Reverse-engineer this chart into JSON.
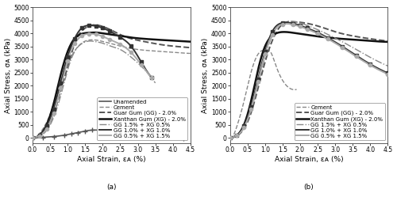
{
  "title_a": "(a)",
  "title_b": "(b)",
  "xlabel": "Axial Strain, εᴀ (%)",
  "ylabel": "Axial Stress, σᴀ (kPa)",
  "xlim": [
    0,
    4.5
  ],
  "ylim": [
    -200,
    5000
  ],
  "xticks": [
    0,
    0.5,
    1.0,
    1.5,
    2.0,
    2.5,
    3.0,
    3.5,
    4.0,
    4.5
  ],
  "yticks": [
    0,
    500,
    1000,
    1500,
    2000,
    2500,
    3000,
    3500,
    4000,
    4500,
    5000
  ],
  "curves_a": {
    "Unamended": {
      "x": [
        0,
        0.3,
        0.6,
        0.9,
        1.1,
        1.3,
        1.5,
        1.7,
        1.9,
        2.1,
        2.3,
        2.5,
        2.8,
        3.2,
        3.8,
        4.3
      ],
      "y": [
        0,
        20,
        50,
        100,
        150,
        200,
        260,
        295,
        295,
        280,
        250,
        220,
        170,
        100,
        30,
        -40
      ],
      "color": "#555555",
      "linestyle": "-",
      "linewidth": 1.2,
      "marker": "+",
      "markersize": 5,
      "markevery": 1
    },
    "Cement": {
      "x": [
        0,
        0.15,
        0.3,
        0.5,
        0.7,
        0.9,
        1.1,
        1.3,
        1.5,
        1.7,
        1.9,
        2.1,
        2.4,
        2.7,
        3.0,
        3.5,
        4.0,
        4.5
      ],
      "y": [
        0,
        100,
        350,
        900,
        1700,
        2500,
        3100,
        3500,
        3700,
        3750,
        3720,
        3650,
        3550,
        3450,
        3380,
        3320,
        3270,
        3230
      ],
      "color": "#888888",
      "linestyle": "--",
      "linewidth": 1.0,
      "marker": null,
      "markersize": 0,
      "markevery": 1
    },
    "Guar Gum (GG) - 2.0%": {
      "x": [
        0,
        0.2,
        0.4,
        0.6,
        0.8,
        1.0,
        1.2,
        1.5,
        1.8,
        2.0,
        2.2,
        2.5,
        2.8,
        3.2,
        3.6,
        4.0,
        4.5
      ],
      "y": [
        0,
        80,
        350,
        900,
        1800,
        2700,
        3600,
        4200,
        4320,
        4260,
        4150,
        3950,
        3800,
        3680,
        3580,
        3510,
        3450
      ],
      "color": "#555555",
      "linestyle": "--",
      "linewidth": 1.4,
      "marker": null,
      "markersize": 0,
      "markevery": 1
    },
    "Xanthan Gum (XG) - 2.0%": {
      "x": [
        0,
        0.2,
        0.4,
        0.6,
        0.8,
        1.0,
        1.2,
        1.4,
        1.6,
        1.8,
        2.0,
        2.2,
        2.5,
        2.8,
        3.0,
        3.5,
        4.0,
        4.5
      ],
      "y": [
        0,
        100,
        500,
        1300,
        2400,
        3300,
        3800,
        3980,
        4020,
        4030,
        4000,
        3960,
        3900,
        3840,
        3810,
        3760,
        3720,
        3680
      ],
      "color": "#111111",
      "linestyle": "-",
      "linewidth": 1.8,
      "marker": null,
      "markersize": 0,
      "markevery": 1
    },
    "GG 1.5% + XG 0.5%": {
      "x": [
        0,
        0.2,
        0.4,
        0.6,
        0.8,
        1.0,
        1.2,
        1.4,
        1.6,
        1.8,
        2.0,
        2.2,
        2.5,
        2.8,
        3.2,
        3.5
      ],
      "y": [
        0,
        60,
        280,
        780,
        1600,
        2600,
        3300,
        3600,
        3700,
        3680,
        3620,
        3520,
        3380,
        3100,
        2600,
        2100
      ],
      "color": "#888888",
      "linestyle": "-.",
      "linewidth": 1.0,
      "marker": null,
      "markersize": 0,
      "markevery": 1
    },
    "GG 1.0% + XG 1.0%": {
      "x": [
        0,
        0.2,
        0.4,
        0.6,
        0.8,
        1.0,
        1.2,
        1.4,
        1.6,
        1.8,
        2.0,
        2.2,
        2.5,
        2.8,
        3.1,
        3.4
      ],
      "y": [
        0,
        100,
        450,
        1100,
        2100,
        3100,
        3800,
        4200,
        4300,
        4280,
        4200,
        4080,
        3850,
        3520,
        2900,
        2300
      ],
      "color": "#333333",
      "linestyle": "-",
      "linewidth": 1.4,
      "marker": "s",
      "markersize": 3.5,
      "markevery": 1
    },
    "GG 0.5% + XG 1.5%": {
      "x": [
        0,
        0.2,
        0.4,
        0.6,
        0.8,
        1.0,
        1.2,
        1.4,
        1.6,
        1.8,
        2.0,
        2.2,
        2.5,
        2.8,
        3.1,
        3.4
      ],
      "y": [
        0,
        80,
        350,
        950,
        1900,
        2950,
        3600,
        3900,
        3980,
        3960,
        3880,
        3760,
        3580,
        3280,
        2800,
        2300
      ],
      "color": "#aaaaaa",
      "linestyle": "-",
      "linewidth": 1.4,
      "marker": "o",
      "markersize": 3,
      "markevery": 1
    }
  },
  "curves_b": {
    "Cement": {
      "x": [
        0,
        0.1,
        0.2,
        0.4,
        0.6,
        0.8,
        0.95,
        1.05,
        1.15,
        1.3,
        1.5,
        1.7,
        1.9
      ],
      "y": [
        0,
        100,
        450,
        1400,
        2500,
        3200,
        3350,
        3350,
        3300,
        2800,
        2200,
        1900,
        1850
      ],
      "color": "#888888",
      "linestyle": "--",
      "linewidth": 1.0,
      "marker": null,
      "markersize": 0,
      "markevery": 1
    },
    "Guar Gum (GG) - 2.0%": {
      "x": [
        0,
        0.2,
        0.4,
        0.6,
        0.8,
        1.0,
        1.2,
        1.5,
        1.8,
        2.0,
        2.2,
        2.5,
        2.8,
        3.0,
        3.5,
        4.0,
        4.5
      ],
      "y": [
        0,
        80,
        350,
        950,
        1900,
        2900,
        3700,
        4350,
        4440,
        4420,
        4380,
        4280,
        4150,
        4060,
        3900,
        3790,
        3700
      ],
      "color": "#555555",
      "linestyle": "--",
      "linewidth": 1.4,
      "marker": null,
      "markersize": 0,
      "markevery": 1
    },
    "Xanthan Gum (XG) - 2.0%": {
      "x": [
        0,
        0.2,
        0.4,
        0.6,
        0.8,
        1.0,
        1.2,
        1.5,
        1.8,
        2.0,
        2.2,
        2.5,
        2.8,
        3.0,
        3.5,
        4.0,
        4.5
      ],
      "y": [
        0,
        100,
        500,
        1400,
        2600,
        3500,
        3900,
        4050,
        4020,
        3980,
        3940,
        3880,
        3840,
        3810,
        3760,
        3710,
        3670
      ],
      "color": "#111111",
      "linestyle": "-",
      "linewidth": 1.8,
      "marker": null,
      "markersize": 0,
      "markevery": 1
    },
    "GG 1.5% + XG 0.5%": {
      "x": [
        0,
        0.2,
        0.4,
        0.6,
        0.8,
        1.0,
        1.2,
        1.5,
        1.8,
        2.0,
        2.2,
        2.5,
        2.8,
        3.2,
        3.6,
        4.0,
        4.5
      ],
      "y": [
        0,
        80,
        380,
        1050,
        2050,
        3100,
        3900,
        4400,
        4450,
        4400,
        4300,
        4140,
        3950,
        3680,
        3380,
        3080,
        2750
      ],
      "color": "#888888",
      "linestyle": "-.",
      "linewidth": 1.0,
      "marker": null,
      "markersize": 0,
      "markevery": 1
    },
    "GG 1.0% + XG 1.0%": {
      "x": [
        0,
        0.2,
        0.4,
        0.6,
        0.8,
        1.0,
        1.2,
        1.5,
        1.8,
        2.0,
        2.2,
        2.5,
        2.8,
        3.2,
        3.6,
        4.0,
        4.5
      ],
      "y": [
        0,
        100,
        450,
        1200,
        2250,
        3300,
        4050,
        4400,
        4380,
        4300,
        4200,
        4030,
        3820,
        3500,
        3150,
        2820,
        2480
      ],
      "color": "#333333",
      "linestyle": "-",
      "linewidth": 1.4,
      "marker": "s",
      "markersize": 3.5,
      "markevery": 1
    },
    "GG 0.5% + XG 1.5%": {
      "x": [
        0,
        0.2,
        0.4,
        0.6,
        0.8,
        1.0,
        1.2,
        1.5,
        1.8,
        2.0,
        2.2,
        2.5,
        2.8,
        3.2,
        3.6,
        4.0,
        4.5
      ],
      "y": [
        0,
        90,
        400,
        1100,
        2150,
        3200,
        3950,
        4350,
        4330,
        4260,
        4160,
        3990,
        3780,
        3460,
        3110,
        2780,
        2440
      ],
      "color": "#aaaaaa",
      "linestyle": "-",
      "linewidth": 1.4,
      "marker": "o",
      "markersize": 3,
      "markevery": 1
    }
  },
  "legend_a_order": [
    "Unamended",
    "Cement",
    "Guar Gum (GG) - 2.0%",
    "Xanthan Gum (XG) - 2.0%",
    "GG 1.5% + XG 0.5%",
    "GG 1.0% + XG 1.0%",
    "GG 0.5% + XG 1.5%"
  ],
  "legend_b_order": [
    "Cement",
    "Guar Gum (GG) - 2.0%",
    "Xanthan Gum (XG) - 2.0%",
    "GG 1.5% + XG 0.5%",
    "GG 1.0% + XG 1.0%",
    "GG 0.5% + XG 1.5%"
  ],
  "font_size": 6.5,
  "label_font_size": 6.5,
  "tick_font_size": 5.5,
  "legend_font_size": 5.0
}
